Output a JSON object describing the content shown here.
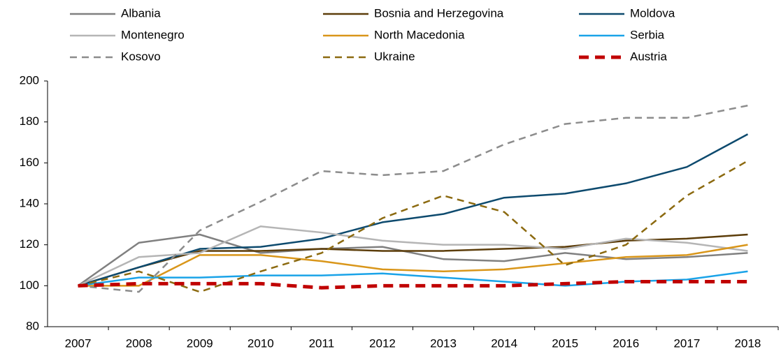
{
  "chart_data": {
    "type": "line",
    "categories": [
      "2007",
      "2008",
      "2009",
      "2010",
      "2011",
      "2012",
      "2013",
      "2014",
      "2015",
      "2016",
      "2017",
      "2018"
    ],
    "series": [
      {
        "name": "Albania",
        "color": "#808080",
        "dash": "solid",
        "values": [
          100,
          121,
          125,
          116,
          118,
          119,
          113,
          112,
          116,
          113,
          114,
          116
        ]
      },
      {
        "name": "Bosnia and Herzegovina",
        "color": "#5c3d0a",
        "dash": "solid",
        "values": [
          100,
          109,
          117,
          117,
          118,
          117,
          117,
          118,
          119,
          122,
          123,
          125
        ]
      },
      {
        "name": "Moldova",
        "color": "#0d4a6e",
        "dash": "solid",
        "values": [
          100,
          109,
          118,
          119,
          123,
          131,
          135,
          143,
          145,
          150,
          158,
          174
        ]
      },
      {
        "name": "Montenegro",
        "color": "#b5b5b5",
        "dash": "solid",
        "values": [
          100,
          114,
          116,
          129,
          126,
          122,
          120,
          120,
          118,
          123,
          121,
          117
        ]
      },
      {
        "name": "North Macedonia",
        "color": "#d9961a",
        "dash": "solid",
        "values": [
          100,
          100,
          115,
          115,
          112,
          108,
          107,
          108,
          111,
          114,
          115,
          120
        ]
      },
      {
        "name": "Serbia",
        "color": "#1aa3e8",
        "dash": "solid",
        "values": [
          100,
          104,
          104,
          105,
          105,
          106,
          104,
          102,
          100,
          102,
          103,
          107
        ]
      },
      {
        "name": "Kosovo",
        "color": "#8c8c8c",
        "dash": "dashed",
        "values": [
          100,
          97,
          127,
          141,
          156,
          154,
          156,
          169,
          179,
          182,
          182,
          188
        ]
      },
      {
        "name": "Ukraine",
        "color": "#8c6a10",
        "dash": "dashed",
        "values": [
          100,
          107,
          97,
          107,
          116,
          133,
          144,
          136,
          110,
          120,
          144,
          161
        ]
      },
      {
        "name": "Austria",
        "color": "#c00000",
        "dash": "thick-dashed",
        "values": [
          100,
          101,
          101,
          101,
          99,
          100,
          100,
          100,
          101,
          102,
          102,
          102
        ]
      }
    ],
    "ylim": [
      80,
      200
    ],
    "yticks": [
      80,
      100,
      120,
      140,
      160,
      180,
      200
    ],
    "grid": false
  }
}
